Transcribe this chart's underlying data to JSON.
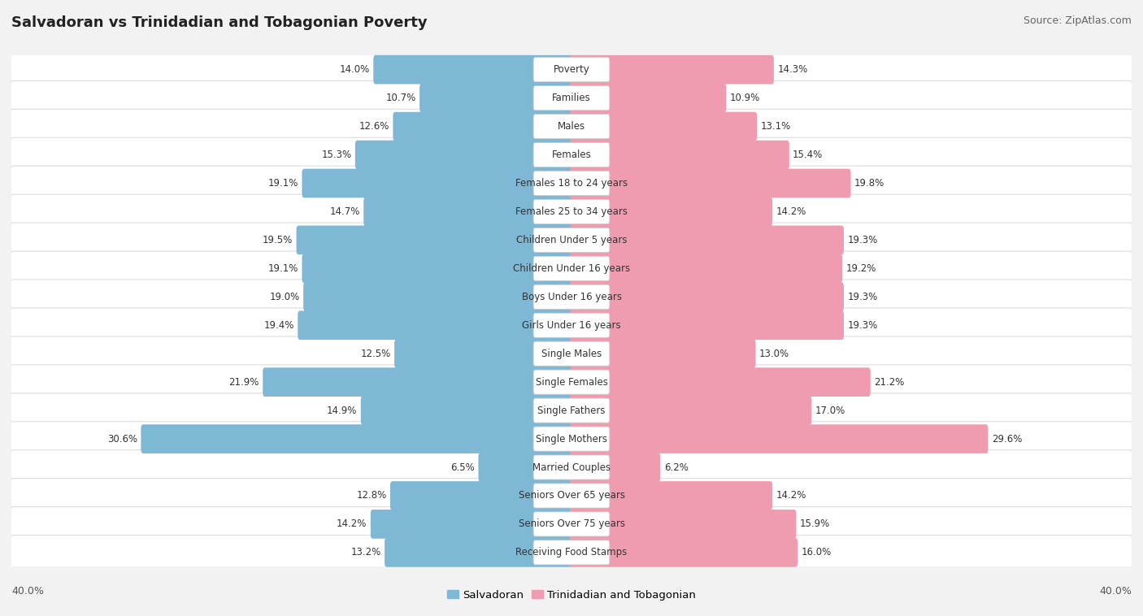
{
  "title": "Salvadoran vs Trinidadian and Tobagonian Poverty",
  "source": "Source: ZipAtlas.com",
  "categories": [
    "Poverty",
    "Families",
    "Males",
    "Females",
    "Females 18 to 24 years",
    "Females 25 to 34 years",
    "Children Under 5 years",
    "Children Under 16 years",
    "Boys Under 16 years",
    "Girls Under 16 years",
    "Single Males",
    "Single Females",
    "Single Fathers",
    "Single Mothers",
    "Married Couples",
    "Seniors Over 65 years",
    "Seniors Over 75 years",
    "Receiving Food Stamps"
  ],
  "salvadoran": [
    14.0,
    10.7,
    12.6,
    15.3,
    19.1,
    14.7,
    19.5,
    19.1,
    19.0,
    19.4,
    12.5,
    21.9,
    14.9,
    30.6,
    6.5,
    12.8,
    14.2,
    13.2
  ],
  "trinidadian": [
    14.3,
    10.9,
    13.1,
    15.4,
    19.8,
    14.2,
    19.3,
    19.2,
    19.3,
    19.3,
    13.0,
    21.2,
    17.0,
    29.6,
    6.2,
    14.2,
    15.9,
    16.0
  ],
  "salvadoran_color": "#7EB8D4",
  "trinidadian_color": "#F09CB0",
  "bg_color": "#f2f2f2",
  "row_bg": "#ffffff",
  "axis_max": 40.0,
  "legend_left": "Salvadoran",
  "legend_right": "Trinidadian and Tobagonian",
  "title_fontsize": 13,
  "source_fontsize": 9,
  "bar_fontsize": 8.5
}
